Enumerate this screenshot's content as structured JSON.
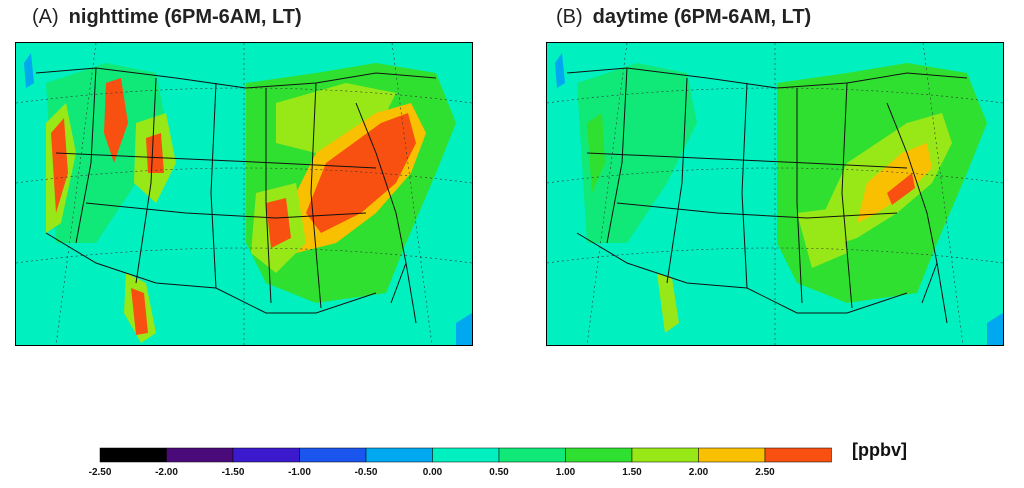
{
  "panels": [
    {
      "letter": "(A)",
      "title": "nighttime (6PM-6AM, LT)"
    },
    {
      "letter": "(B)",
      "title": "daytime (6PM-6AM, LT)"
    }
  ],
  "colorbar": {
    "unit": "[ppbv]",
    "tick_labels": [
      "-2.50",
      "-2.00",
      "-1.50",
      "-1.00",
      "-0.50",
      "0.00",
      "0.50",
      "1.00",
      "1.50",
      "2.00",
      "2.50"
    ],
    "bins": [
      {
        "color": "#000000"
      },
      {
        "color": "#4a0a7a"
      },
      {
        "color": "#3a1acc"
      },
      {
        "color": "#1a56ee"
      },
      {
        "color": "#00a8f0"
      },
      {
        "color": "#00f0c0"
      },
      {
        "color": "#10e878"
      },
      {
        "color": "#30e030"
      },
      {
        "color": "#98e818"
      },
      {
        "color": "#f8c000"
      },
      {
        "color": "#f85010"
      }
    ]
  },
  "colors": {
    "background_field": "#00f0c0",
    "low": "#30e030",
    "mid": "#98e818",
    "high": "#f85010",
    "ocean_edge": "#00a8f0"
  }
}
